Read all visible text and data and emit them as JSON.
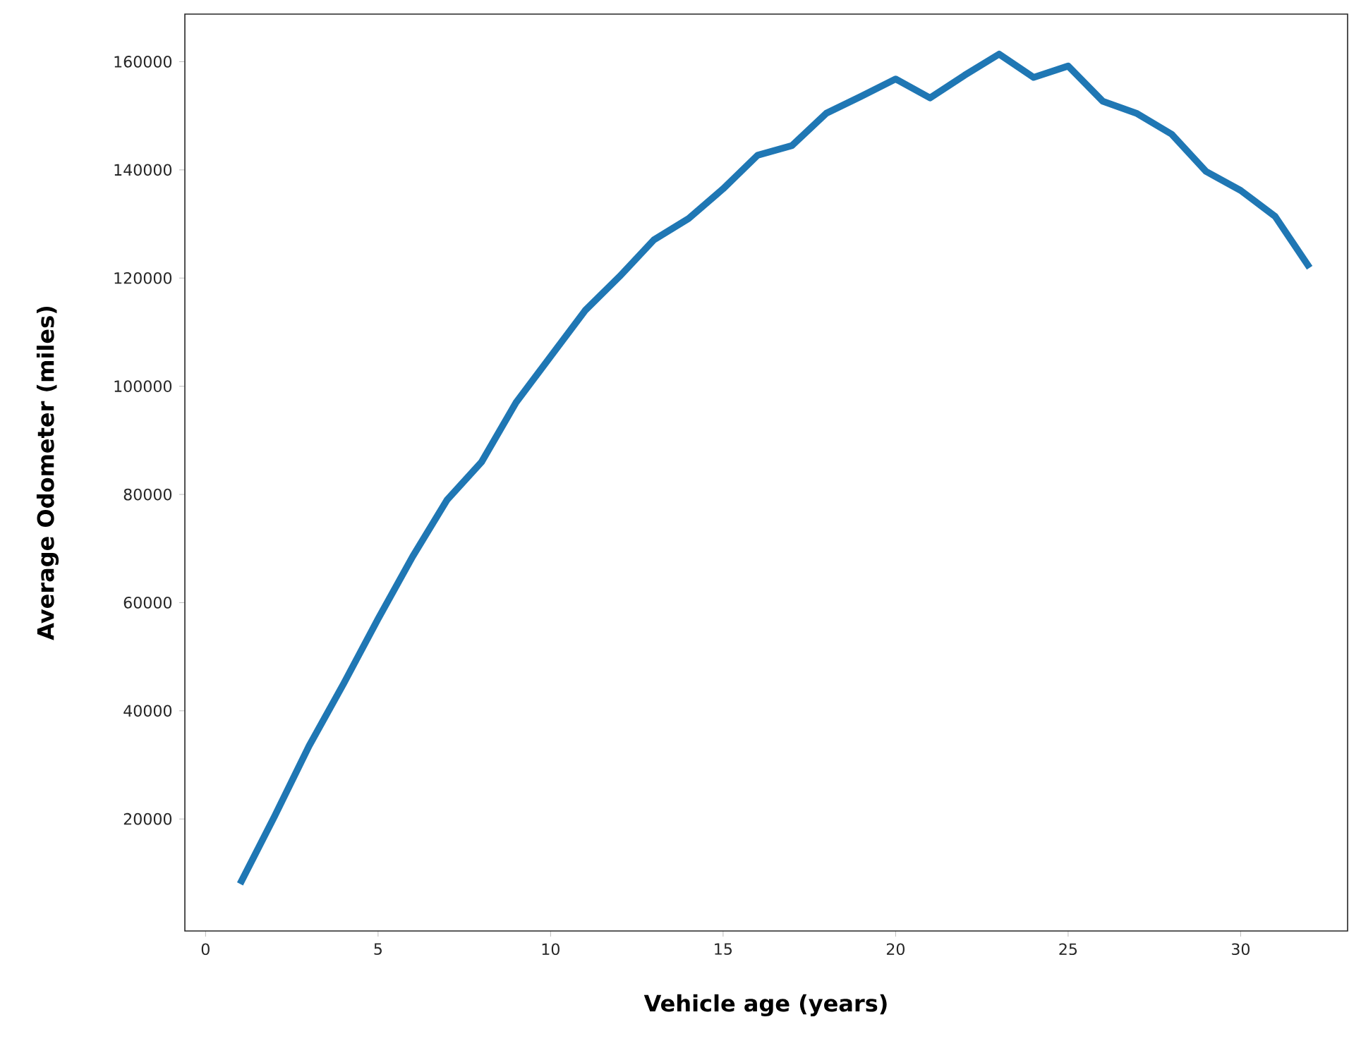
{
  "chart_data": {
    "type": "line",
    "xlabel": "Vehicle age (years)",
    "ylabel": "Average Odometer (miles)",
    "color": "#1f77b4",
    "x": [
      1,
      2,
      3,
      4,
      5,
      6,
      7,
      8,
      9,
      10,
      11,
      12,
      13,
      14,
      15,
      16,
      17,
      18,
      19,
      20,
      21,
      22,
      23,
      24,
      25,
      26,
      27,
      28,
      29,
      30,
      31,
      32
    ],
    "values": [
      8000,
      20500,
      33500,
      45000,
      57000,
      68500,
      79000,
      86000,
      97000,
      105500,
      114000,
      120300,
      127100,
      131000,
      136500,
      142700,
      144500,
      150500,
      153600,
      156800,
      153300,
      157500,
      161400,
      157100,
      159200,
      152700,
      150400,
      146600,
      139700,
      136200,
      131400,
      121900
    ],
    "xlim": [
      -0.6,
      33.1
    ],
    "ylim": [
      -700,
      168800
    ],
    "xticks": [
      0,
      5,
      10,
      15,
      20,
      25,
      30
    ],
    "yticks": [
      20000,
      40000,
      60000,
      80000,
      100000,
      120000,
      140000,
      160000
    ]
  }
}
